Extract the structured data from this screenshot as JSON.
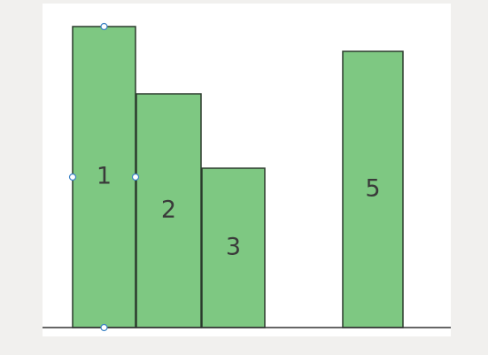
{
  "chart_data": {
    "type": "bar",
    "categories": [
      "1",
      "2",
      "3",
      "5"
    ],
    "values": [
      340,
      264,
      180,
      312
    ],
    "bar_color": "#7ec882",
    "border_color": "#2b3a2c",
    "baseline_color": "#333333",
    "handle_color": "#3b82c4",
    "selected_bar": "1"
  }
}
